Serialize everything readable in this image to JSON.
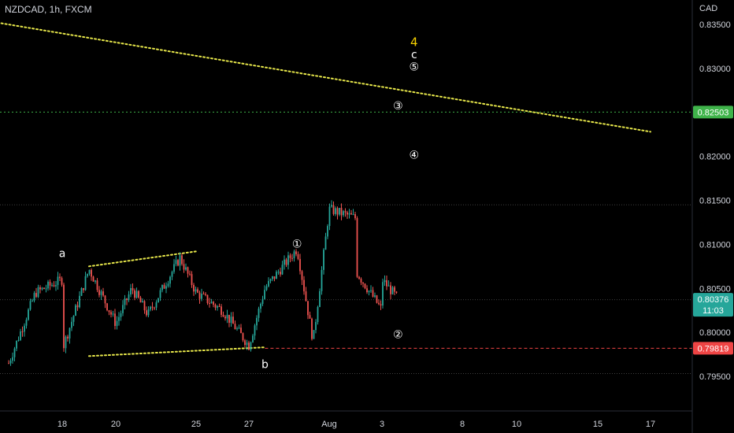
{
  "header": {
    "symbol_title": "NZDCAD, 1h, FXCM",
    "currency": "CAD"
  },
  "colors": {
    "background": "#000000",
    "candle_up": "#26a69a",
    "candle_down": "#ef5350",
    "trendline": "#e6e64a",
    "green_level": "#3fb34a",
    "red_level": "#ef4444",
    "grid_dotted": "#555555",
    "wave_label": "#ffffff",
    "wave_label_highlight": "#f5d000"
  },
  "chart_data": {
    "type": "candlestick",
    "instrument": "NZDCAD",
    "timeframe": "1h",
    "source": "FXCM",
    "x_tick_labels": [
      "18",
      "20",
      "25",
      "27",
      "Aug",
      "3",
      "8",
      "10",
      "15",
      "17"
    ],
    "y_ticks": [
      "0.83500",
      "0.83000",
      "0.82500",
      "0.82000",
      "0.81500",
      "0.81000",
      "0.80500",
      "0.80000",
      "0.79500"
    ],
    "ylim": [
      0.792,
      0.8365
    ],
    "price_badges": [
      {
        "value": "0.82503",
        "color": "#3fb34a"
      },
      {
        "value": "0.80376",
        "sub": "11:03",
        "color": "#26a69a"
      },
      {
        "value": "0.79819",
        "color": "#ef4444"
      }
    ],
    "price_path_anchors": [
      [
        "Jul 16",
        0.7965
      ],
      [
        "Jul 17",
        0.8045
      ],
      [
        "Jul 18",
        0.806
      ],
      [
        "Jul 18",
        0.798
      ],
      [
        "Jul 19",
        0.8072
      ],
      [
        "Jul 20",
        0.801
      ],
      [
        "Jul 21",
        0.805
      ],
      [
        "Jul 22",
        0.802
      ],
      [
        "Jul 24",
        0.8085
      ],
      [
        "Jul 25",
        0.8045
      ],
      [
        "Jul 26",
        0.8025
      ],
      [
        "Jul 27",
        0.7985
      ],
      [
        "Jul 28",
        0.805
      ],
      [
        "Jul 30",
        0.8095
      ],
      [
        "Jul 31",
        0.799
      ],
      [
        "Aug 1",
        0.814
      ],
      [
        "Aug 2",
        0.813
      ],
      [
        "Aug 2",
        0.807
      ],
      [
        "Aug 3",
        0.8025
      ],
      [
        "Aug 3",
        0.806
      ],
      [
        "Aug 4",
        0.8038
      ]
    ],
    "wave_labels": [
      {
        "text": "a",
        "date": "Jul 18",
        "price": 0.809
      },
      {
        "text": "b",
        "date": "Jul 28",
        "price": 0.7964
      },
      {
        "text": "①",
        "date": "Jul 30",
        "price": 0.8101
      },
      {
        "text": "②",
        "date": "Aug 4",
        "price": 0.7998
      },
      {
        "text": "③",
        "date": "Aug 4",
        "price": 0.8258
      },
      {
        "text": "④",
        "date": "Aug 5",
        "price": 0.8202
      },
      {
        "text": "⑤",
        "date": "Aug 5",
        "price": 0.8302
      },
      {
        "text": "c",
        "date": "Aug 5",
        "price": 0.8316
      },
      {
        "text": "4",
        "date": "Aug 5",
        "price": 0.833,
        "highlight": true
      }
    ],
    "trendlines": [
      {
        "name": "upper-falling",
        "from": [
          "Jul 15",
          0.8355
        ],
        "to": [
          "Aug 17",
          0.8228
        ]
      },
      {
        "name": "triangle-upper",
        "from": [
          "Jul 19",
          0.8075
        ],
        "to": [
          "Jul 25",
          0.8092
        ]
      },
      {
        "name": "triangle-lower",
        "from": [
          "Jul 19",
          0.7973
        ],
        "to": [
          "Jul 28",
          0.7983
        ]
      }
    ],
    "horizontal_levels": [
      {
        "name": "green",
        "price": 0.82503,
        "style": "dotted"
      },
      {
        "name": "red",
        "price": 0.79819,
        "style": "dashed",
        "from": "Jul 28"
      }
    ]
  }
}
